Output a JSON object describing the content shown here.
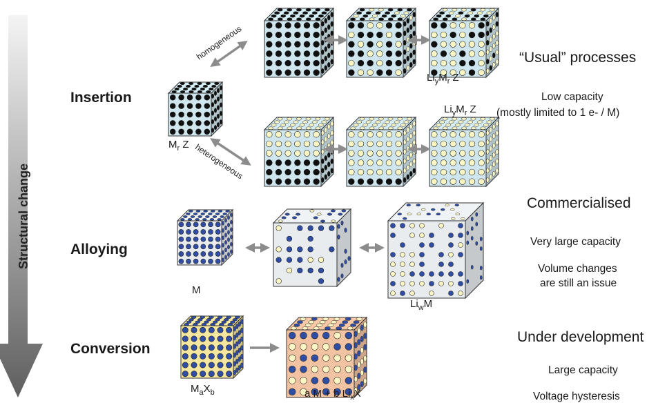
{
  "axis": {
    "title": "Structural change"
  },
  "rows": {
    "insertion": {
      "label": "Insertion",
      "homogeneous": "homogeneous",
      "heterogeneous": "heterogeneous",
      "status": "“Usual” processes",
      "capacity": "Low capacity",
      "note": "(mostly limited to 1 e- / M)"
    },
    "alloying": {
      "label": "Alloying",
      "status": "Commercialised",
      "capacity": "Very large capacity",
      "note_line1": "Volume changes",
      "note_line2": "are still an issue"
    },
    "conversion": {
      "label": "Conversion",
      "status": "Under development",
      "capacity": "Large capacity",
      "note": "Voltage hysteresis"
    }
  },
  "formulas": {
    "MrZ": {
      "a": "M",
      "sub1": "r",
      "b": " Z"
    },
    "LiyMrZ": {
      "a": "Li",
      "sub1": "y",
      "b": "M",
      "sub2": "r",
      "c": " Z"
    },
    "M": "M",
    "LiwM": {
      "a": "Li",
      "sub1": "w",
      "b": "M"
    },
    "MaXb": {
      "a": "M",
      "sub1": "a",
      "b": "X",
      "sub2": "b"
    },
    "product": {
      "a": "a M + b Li",
      "sub1": "x",
      "b": "X"
    }
  },
  "colors": {
    "insertion_face": "#cfe6ee",
    "alloy_face": "#e9ecef",
    "conversion_host": "#f5e6a0",
    "conversion_product": "#f2c3a2",
    "black_atom": "#101010",
    "li_atom": "#fbf6c4",
    "blue_atom": "#2f4ea3",
    "arrow_gray": "#8c8c8c",
    "axis_top": "#f2f2f2",
    "axis_bottom": "#666666"
  }
}
